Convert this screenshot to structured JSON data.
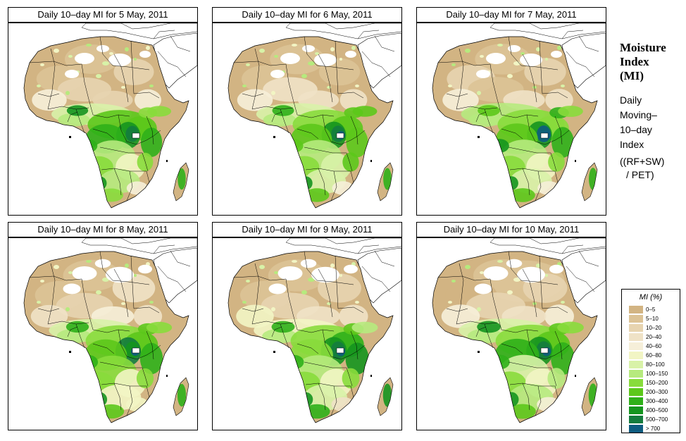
{
  "panels": [
    {
      "title": "Daily 10–day MI for  5 May, 2011",
      "variant": 0
    },
    {
      "title": "Daily 10–day MI for  6 May, 2011",
      "variant": 1
    },
    {
      "title": "Daily 10–day MI for  7 May, 2011",
      "variant": 2
    },
    {
      "title": "Daily 10–day MI for  8 May, 2011",
      "variant": 3
    },
    {
      "title": "Daily 10–day MI for  9 May, 2011",
      "variant": 4
    },
    {
      "title": "Daily 10–day MI for  10 May, 2011",
      "variant": 5
    }
  ],
  "side": {
    "title_line1": "Moisture",
    "title_line2": "Index",
    "title_line3": "(MI)",
    "sub_line1": "Daily",
    "sub_line2": "Moving–",
    "sub_line3": "10–day",
    "sub_line4": "Index",
    "formula_line1": "((RF+SW)",
    "formula_line2": "/ PET)"
  },
  "legend": {
    "title": "MI (%)",
    "classes": [
      {
        "label": "0–5",
        "color": "#d2b483"
      },
      {
        "label": "5–10",
        "color": "#dcc396"
      },
      {
        "label": "10–20",
        "color": "#e7d4b0"
      },
      {
        "label": "20–40",
        "color": "#efe2c6"
      },
      {
        "label": "40–60",
        "color": "#f6efd9"
      },
      {
        "label": "60–80",
        "color": "#f2f5c4"
      },
      {
        "label": "80–100",
        "color": "#d8f2a8"
      },
      {
        "label": "100–150",
        "color": "#b6ea7e"
      },
      {
        "label": "150–200",
        "color": "#88dc3c"
      },
      {
        "label": "200–300",
        "color": "#5cc81b"
      },
      {
        "label": "300–400",
        "color": "#2fb01a"
      },
      {
        "label": "400–500",
        "color": "#15951f"
      },
      {
        "label": "500–700",
        "color": "#147c3e"
      },
      {
        "label": "> 700",
        "color": "#0e5c80"
      }
    ]
  }
}
